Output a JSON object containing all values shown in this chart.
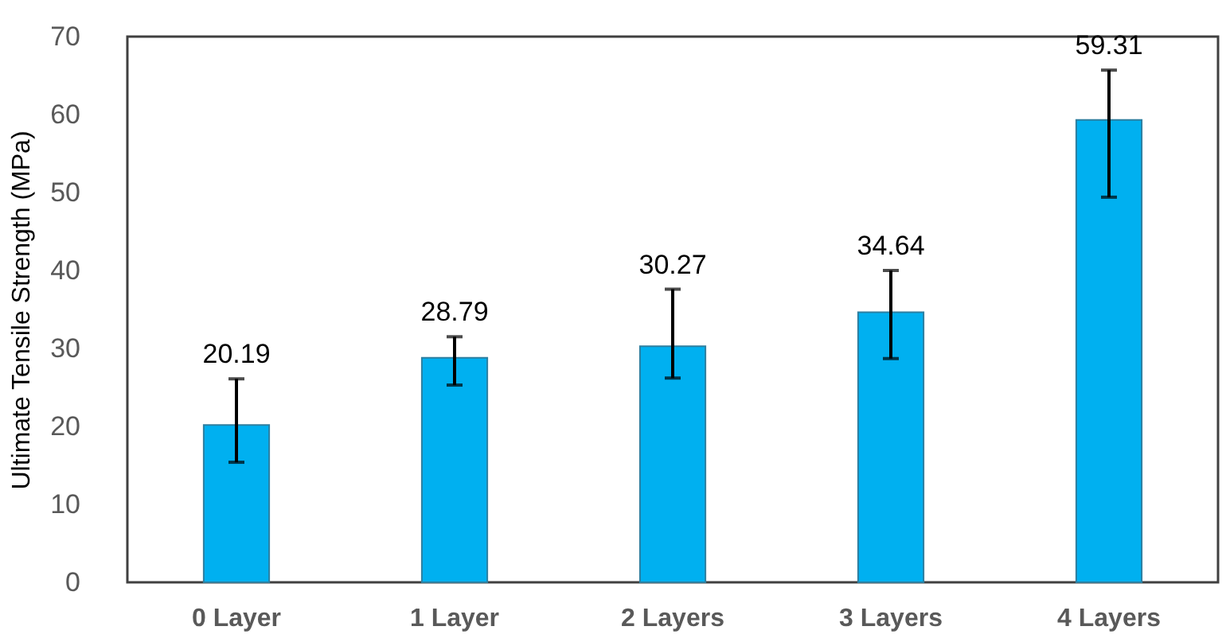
{
  "chart_data": {
    "type": "bar",
    "ylabel": "Ultimate Tensile Strength (MPa)",
    "categories": [
      "0 Layer",
      "1 Layer",
      "2 Layers",
      "3 Layers",
      "4 Layers"
    ],
    "values": [
      20.19,
      28.79,
      30.27,
      34.64,
      59.31
    ],
    "errors": [
      [
        15.4,
        26.1
      ],
      [
        25.3,
        31.5
      ],
      [
        26.2,
        37.6
      ],
      [
        28.7,
        40.0
      ],
      [
        49.4,
        65.7
      ]
    ],
    "color": "#00b0f0",
    "ylim": [
      0,
      70
    ],
    "yticks": [
      0,
      10,
      20,
      30,
      40,
      50,
      60,
      70
    ],
    "data_labels": true,
    "grid": false
  }
}
